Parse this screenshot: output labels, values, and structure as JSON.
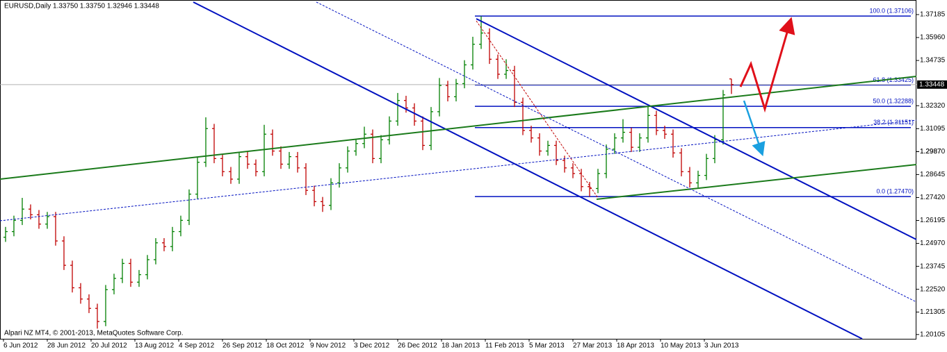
{
  "chart_data": {
    "type": "ohlc_bars",
    "title": "EURUSD,Daily  1.33750 1.33750 1.32946 1.33448",
    "footer": "Alpari NZ MT4, © 2001-2013, MetaQuotes Software Corp.",
    "up_color": "#008000",
    "down_color": "#c00000",
    "ylim": [
      1.19876,
      1.37963
    ],
    "yticks": [
      1.37185,
      {
        "value": 1.3596,
        "label": "1.35960"
      },
      1.34735,
      {
        "value": 1.3232,
        "label": "1.32320"
      },
      1.31095,
      1.2987,
      {
        "value": 1.2987,
        "label": "1.29870"
      },
      1.28645,
      {
        "value": 1.2742,
        "label": "1.27420"
      },
      1.26195,
      {
        "value": 1.2497,
        "label": "1.24970"
      },
      1.23745,
      {
        "value": 1.2252,
        "label": "1.22520"
      },
      1.21305,
      1.20105
    ],
    "current_price": 1.33448,
    "x_labels": [
      "6 Jun 2012",
      "28 Jun 2012",
      "20 Jul 2012",
      "13 Aug 2012",
      "4 Sep 2012",
      "26 Sep 2012",
      "18 Oct 2012",
      "9 Nov 2012",
      "3 Dec 2012",
      "26 Dec 2012",
      "18 Jan 2013",
      "11 Feb 2013",
      "5 Mar 2013",
      "27 Mar 2013",
      "18 Apr 2013",
      "10 May 2013",
      "3 Jun 2013"
    ],
    "fib_levels": [
      {
        "label": "100.0 (1.37106)",
        "value": 1.37106
      },
      {
        "label": "61.8 (1.33425)",
        "value": 1.33425
      },
      {
        "label": "50.0 (1.32288)",
        "value": 1.32288
      },
      {
        "label": "38.2 (1.31151)",
        "value": 1.31151
      },
      {
        "label": "0.0 (1.27470)",
        "value": 1.2747
      }
    ],
    "ohlc": [
      [
        1.253,
        1.2585,
        1.2505,
        1.256
      ],
      [
        1.256,
        1.2645,
        1.2535,
        1.262
      ],
      [
        1.262,
        1.274,
        1.2595,
        1.268
      ],
      [
        1.268,
        1.2705,
        1.2625,
        1.265
      ],
      [
        1.265,
        1.2675,
        1.2575,
        1.26
      ],
      [
        1.26,
        1.2665,
        1.2575,
        1.264
      ],
      [
        1.264,
        1.2665,
        1.2485,
        1.251
      ],
      [
        1.251,
        1.2535,
        1.2355,
        1.238
      ],
      [
        1.238,
        1.2405,
        1.2235,
        1.226
      ],
      [
        1.226,
        1.2285,
        1.2175,
        1.22
      ],
      [
        1.22,
        1.2225,
        1.2125,
        1.215
      ],
      [
        1.215,
        1.2175,
        1.2042,
        1.208
      ],
      [
        1.208,
        1.2275,
        1.2055,
        1.225
      ],
      [
        1.225,
        1.2335,
        1.2225,
        1.231
      ],
      [
        1.231,
        1.2415,
        1.2285,
        1.239
      ],
      [
        1.239,
        1.2415,
        1.2265,
        1.229
      ],
      [
        1.229,
        1.2355,
        1.2265,
        1.233
      ],
      [
        1.233,
        1.2435,
        1.2305,
        1.241
      ],
      [
        1.241,
        1.2525,
        1.2385,
        1.25
      ],
      [
        1.25,
        1.2525,
        1.2455,
        1.248
      ],
      [
        1.248,
        1.2585,
        1.2455,
        1.256
      ],
      [
        1.256,
        1.2645,
        1.2535,
        1.262
      ],
      [
        1.262,
        1.2785,
        1.2595,
        1.276
      ],
      [
        1.276,
        1.2955,
        1.2735,
        1.293
      ],
      [
        1.293,
        1.317,
        1.2905,
        1.311
      ],
      [
        1.311,
        1.3135,
        1.2925,
        1.295
      ],
      [
        1.295,
        1.2975,
        1.2855,
        1.288
      ],
      [
        1.288,
        1.2905,
        1.2815,
        1.284
      ],
      [
        1.284,
        1.2985,
        1.2815,
        1.296
      ],
      [
        1.296,
        1.2985,
        1.2895,
        1.292
      ],
      [
        1.292,
        1.2945,
        1.2855,
        1.288
      ],
      [
        1.288,
        1.313,
        1.2855,
        1.308
      ],
      [
        1.308,
        1.3105,
        1.2965,
        1.299
      ],
      [
        1.299,
        1.3015,
        1.2895,
        1.292
      ],
      [
        1.292,
        1.2985,
        1.2895,
        1.296
      ],
      [
        1.296,
        1.2985,
        1.2875,
        1.29
      ],
      [
        1.29,
        1.2925,
        1.2755,
        1.278
      ],
      [
        1.278,
        1.2805,
        1.2695,
        1.272
      ],
      [
        1.272,
        1.2745,
        1.2665,
        1.27
      ],
      [
        1.27,
        1.2845,
        1.2675,
        1.282
      ],
      [
        1.282,
        1.2925,
        1.2795,
        1.29
      ],
      [
        1.29,
        1.3015,
        1.2875,
        1.299
      ],
      [
        1.299,
        1.3055,
        1.2965,
        1.303
      ],
      [
        1.303,
        1.312,
        1.3005,
        1.308
      ],
      [
        1.308,
        1.3105,
        1.2925,
        1.295
      ],
      [
        1.295,
        1.3075,
        1.2925,
        1.305
      ],
      [
        1.305,
        1.3175,
        1.3025,
        1.315
      ],
      [
        1.315,
        1.33,
        1.3125,
        1.326
      ],
      [
        1.326,
        1.3285,
        1.3195,
        1.322
      ],
      [
        1.322,
        1.3245,
        1.3125,
        1.315
      ],
      [
        1.315,
        1.3175,
        1.2995,
        1.302
      ],
      [
        1.302,
        1.3225,
        1.2995,
        1.32
      ],
      [
        1.32,
        1.338,
        1.3175,
        1.334
      ],
      [
        1.334,
        1.3365,
        1.3255,
        1.328
      ],
      [
        1.328,
        1.3375,
        1.3255,
        1.335
      ],
      [
        1.335,
        1.3475,
        1.3325,
        1.345
      ],
      [
        1.345,
        1.36,
        1.3425,
        1.356
      ],
      [
        1.356,
        1.371,
        1.3535,
        1.362
      ],
      [
        1.362,
        1.3645,
        1.3455,
        1.348
      ],
      [
        1.348,
        1.3505,
        1.3375,
        1.34
      ],
      [
        1.34,
        1.348,
        1.3375,
        1.342
      ],
      [
        1.342,
        1.3445,
        1.3225,
        1.325
      ],
      [
        1.325,
        1.3275,
        1.3075,
        1.31
      ],
      [
        1.31,
        1.3125,
        1.3035,
        1.306
      ],
      [
        1.306,
        1.3085,
        1.2965,
        1.299
      ],
      [
        1.299,
        1.3045,
        1.2965,
        1.302
      ],
      [
        1.302,
        1.3045,
        1.2915,
        1.294
      ],
      [
        1.294,
        1.2965,
        1.2875,
        1.29
      ],
      [
        1.29,
        1.2925,
        1.2845,
        1.287
      ],
      [
        1.287,
        1.2895,
        1.2775,
        1.28
      ],
      [
        1.28,
        1.2825,
        1.2747,
        1.279
      ],
      [
        1.279,
        1.2895,
        1.2765,
        1.287
      ],
      [
        1.287,
        1.3025,
        1.2845,
        1.3
      ],
      [
        1.3,
        1.3085,
        1.2975,
        1.306
      ],
      [
        1.306,
        1.316,
        1.3035,
        1.309
      ],
      [
        1.309,
        1.3115,
        1.2985,
        1.301
      ],
      [
        1.301,
        1.3085,
        1.2985,
        1.306
      ],
      [
        1.306,
        1.323,
        1.3035,
        1.318
      ],
      [
        1.318,
        1.3205,
        1.3075,
        1.31
      ],
      [
        1.31,
        1.3125,
        1.3055,
        1.308
      ],
      [
        1.308,
        1.3105,
        1.2955,
        1.298
      ],
      [
        1.298,
        1.3005,
        1.2855,
        1.288
      ],
      [
        1.288,
        1.2905,
        1.2795,
        1.282
      ],
      [
        1.282,
        1.2885,
        1.2795,
        1.286
      ],
      [
        1.286,
        1.2975,
        1.2835,
        1.295
      ],
      [
        1.295,
        1.3075,
        1.2925,
        1.305
      ],
      [
        1.305,
        1.3316,
        1.3025,
        1.329
      ],
      [
        1.3375,
        1.3375,
        1.32946,
        1.33448
      ]
    ]
  }
}
